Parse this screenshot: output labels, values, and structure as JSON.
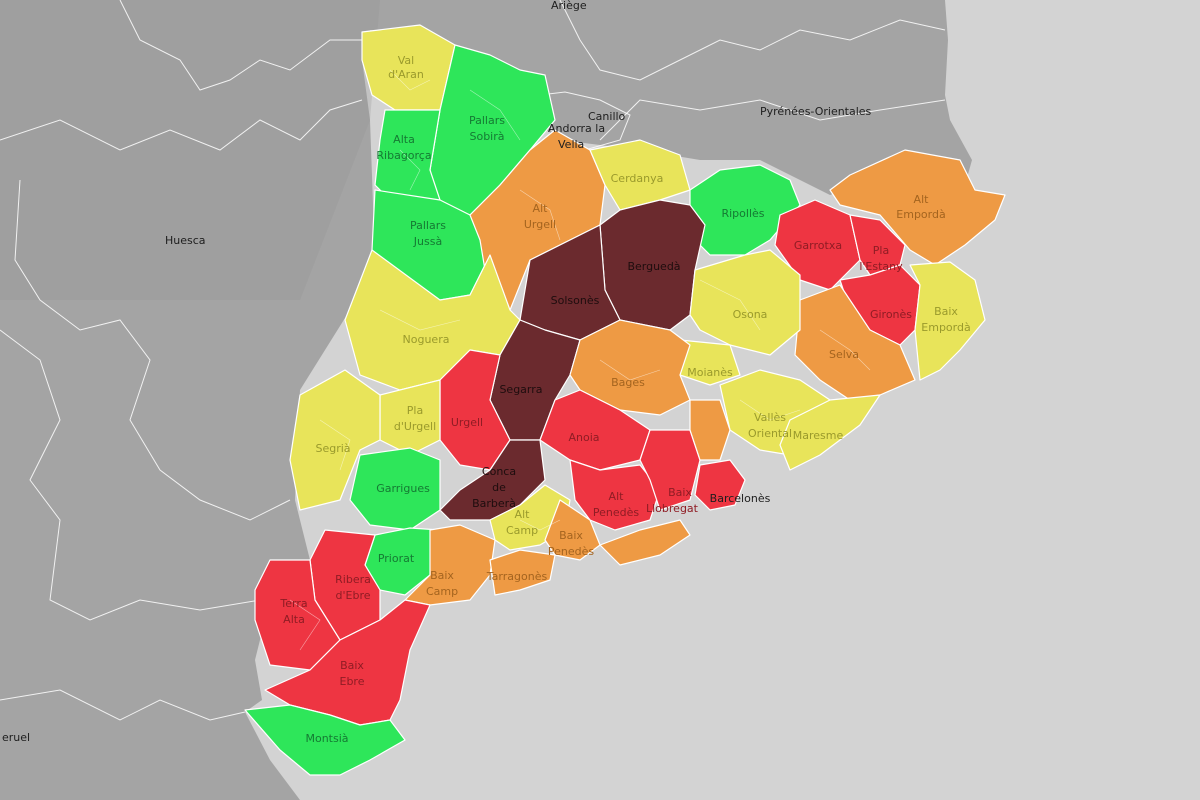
{
  "map": {
    "colors": {
      "sea": "#d3d3d3",
      "land": "#a4a4a4",
      "land_dark": "#8f8f8f",
      "green": "#2ee65a",
      "yellow": "#e8e45a",
      "orange": "#ee9a44",
      "red": "#ee3542",
      "dark": "#6b2a2e"
    },
    "external_labels": {
      "ariege": "Ariège",
      "canillo": "Canillo",
      "andorra_1": "Andorra la",
      "andorra_2": "Vella",
      "pyrenees_orientales": "Pyrénées-Orientales",
      "huesca": "Huesca",
      "teruel": "eruel"
    },
    "county_labels": {
      "val_daran_1": "Val",
      "val_daran_2": "d'Aran",
      "pallars_sobira_1": "Pallars",
      "pallars_sobira_2": "Sobirà",
      "alta_ribagorca_1": "Alta",
      "alta_ribagorca_2": "Ribagorça",
      "pallars_jussa_1": "Pallars",
      "pallars_jussa_2": "Jussà",
      "alt_urgell_1": "Alt",
      "alt_urgell_2": "Urgell",
      "cerdanya": "Cerdanya",
      "ripolles": "Ripollès",
      "alt_emporda_1": "Alt",
      "alt_emporda_2": "Empordà",
      "garrotxa": "Garrotxa",
      "pla_estany_1": "Pla",
      "pla_estany_2": "l'Estany",
      "girones": "Gironès",
      "baix_emporda_1": "Baix",
      "baix_emporda_2": "Empordà",
      "bergueda": "Berguedà",
      "solsones": "Solsonès",
      "osona": "Osona",
      "noguera": "Noguera",
      "selva": "Selva",
      "bages": "Bages",
      "moianes": "Moianès",
      "segarra": "Segarra",
      "pla_urgell_1": "Pla",
      "pla_urgell_2": "d'Urgell",
      "urgell": "Urgell",
      "segria": "Segrià",
      "valles_oriental_1": "Vallès",
      "valles_oriental_2": "Oriental",
      "maresme": "Maresme",
      "anoia": "Anoia",
      "garrigues": "Garrigues",
      "conca_1": "Conca",
      "conca_2": "de",
      "conca_3": "Barberà",
      "alt_penedes_1": "Alt",
      "alt_penedes_2": "Penedès",
      "baix_llobregat_1": "Baix",
      "baix_llobregat_2": "Llobregat",
      "barcelones": "Barcelonès",
      "alt_camp_1": "Alt",
      "alt_camp_2": "Camp",
      "baix_penedes_1": "Baix",
      "baix_penedes_2": "Penedès",
      "priorat": "Priorat",
      "baix_camp_1": "Baix",
      "baix_camp_2": "Camp",
      "tarragones": "Tarragonès",
      "ribera_1": "Ribera",
      "ribera_2": "d'Ebre",
      "terra_alta_1": "Terra",
      "terra_alta_2": "Alta",
      "baix_ebre_1": "Baix",
      "baix_ebre_2": "Ebre",
      "montsia": "Montsià"
    }
  }
}
